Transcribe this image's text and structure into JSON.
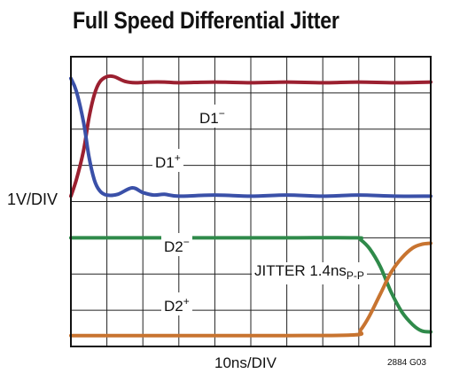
{
  "chart_data": {
    "type": "line",
    "title": "Full Speed Differential Jitter",
    "ylabel": "1V/DIV",
    "xlabel": "10ns/DIV",
    "figure_id": "2884 G03",
    "annotation": "JITTER 1.4ns",
    "annotation_sub": "P-P",
    "grid": true,
    "divisions": {
      "x": 10,
      "y": 8
    },
    "xlim": [
      0,
      10
    ],
    "ylim": [
      0,
      8
    ],
    "series": [
      {
        "name": "D1",
        "sign": "−",
        "color": "#9b2030",
        "x": [
          0,
          0.15,
          0.35,
          0.5,
          0.65,
          0.8,
          1.0,
          1.2,
          1.5,
          1.8,
          2.2,
          2.6,
          3.0,
          4.0,
          5.0,
          6.0,
          7.0,
          8.0,
          9.0,
          10.0
        ],
        "y": [
          4.15,
          4.6,
          5.4,
          6.3,
          6.95,
          7.3,
          7.45,
          7.45,
          7.32,
          7.28,
          7.3,
          7.3,
          7.28,
          7.3,
          7.28,
          7.3,
          7.28,
          7.3,
          7.28,
          7.3
        ]
      },
      {
        "name": "D1",
        "sign": "+",
        "color": "#3a50a8",
        "x": [
          0,
          0.15,
          0.35,
          0.5,
          0.65,
          0.8,
          1.0,
          1.3,
          1.7,
          2.0,
          2.3,
          2.6,
          3.0,
          4.0,
          5.0,
          6.0,
          7.0,
          8.0,
          9.0,
          10.0
        ],
        "y": [
          7.4,
          7.05,
          6.2,
          5.25,
          4.6,
          4.3,
          4.18,
          4.2,
          4.38,
          4.25,
          4.18,
          4.2,
          4.15,
          4.18,
          4.15,
          4.18,
          4.15,
          4.18,
          4.15,
          4.15
        ]
      },
      {
        "name": "D2",
        "sign": "−",
        "color": "#2f8a4a",
        "x": [
          0,
          2.0,
          4.0,
          6.0,
          7.9,
          8.05,
          8.3,
          8.6,
          8.9,
          9.2,
          9.5,
          9.75,
          10.0
        ],
        "y": [
          3.0,
          3.0,
          3.0,
          3.0,
          3.0,
          2.95,
          2.7,
          2.2,
          1.5,
          0.95,
          0.6,
          0.43,
          0.4
        ]
      },
      {
        "name": "D2",
        "sign": "+",
        "color": "#c87430",
        "x": [
          0,
          2.0,
          4.0,
          6.0,
          7.9,
          8.05,
          8.3,
          8.6,
          8.9,
          9.2,
          9.5,
          9.75,
          10.0
        ],
        "y": [
          0.3,
          0.3,
          0.3,
          0.3,
          0.32,
          0.45,
          0.85,
          1.45,
          2.05,
          2.45,
          2.72,
          2.82,
          2.85
        ]
      }
    ]
  }
}
